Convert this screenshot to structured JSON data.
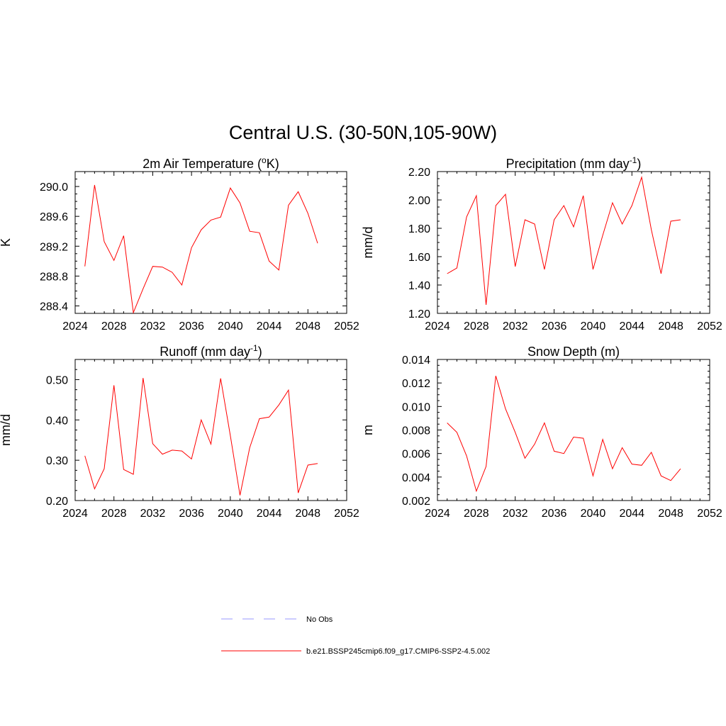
{
  "figure": {
    "title": "Central U.S. (30-50N,105-90W)"
  },
  "colors": {
    "model_line": "#ff0000",
    "obs_line": "#9999ff",
    "axis": "#000000"
  },
  "legend": {
    "items": [
      {
        "label": "No Obs",
        "style": "dashed",
        "color": "#9999ff"
      },
      {
        "label": "b.e21.BSSP245cmip6.f09_g17.CMIP6-SSP2-4.5.002",
        "style": "solid",
        "color": "#ff0000"
      }
    ]
  },
  "chart_data": [
    {
      "type": "line",
      "title": "2m Air Temperature (",
      "title_unit_sup": "o",
      "title_unit_after": "K)",
      "ylabel": "K",
      "xlim": [
        2024,
        2052
      ],
      "ylim": [
        288.3,
        290.2
      ],
      "xticks": [
        "2024",
        "2028",
        "2032",
        "2036",
        "2040",
        "2044",
        "2048",
        "2052"
      ],
      "yticks": [
        "288.4",
        "288.8",
        "289.2",
        "289.6",
        "290.0"
      ],
      "x": [
        2025,
        2026,
        2027,
        2028,
        2029,
        2030,
        2031,
        2032,
        2033,
        2034,
        2035,
        2036,
        2037,
        2038,
        2039,
        2040,
        2041,
        2042,
        2043,
        2044,
        2045,
        2046,
        2047,
        2048,
        2049
      ],
      "series": [
        {
          "values": [
            288.93,
            290.02,
            289.26,
            289.01,
            289.34,
            288.31,
            288.63,
            288.93,
            288.92,
            288.85,
            288.68,
            289.18,
            289.42,
            289.55,
            289.59,
            289.98,
            289.78,
            289.4,
            289.38,
            289.0,
            288.88,
            289.75,
            289.93,
            289.64,
            289.24
          ]
        }
      ]
    },
    {
      "type": "line",
      "title": "Precipitation (mm day",
      "title_unit_sup": "-1",
      "title_unit_after": ")",
      "ylabel": "mm/d",
      "xlim": [
        2024,
        2052
      ],
      "ylim": [
        1.2,
        2.2
      ],
      "xticks": [
        "2024",
        "2028",
        "2032",
        "2036",
        "2040",
        "2044",
        "2048",
        "2052"
      ],
      "yticks": [
        "1.20",
        "1.40",
        "1.60",
        "1.80",
        "2.00",
        "2.20"
      ],
      "x": [
        2025,
        2026,
        2027,
        2028,
        2029,
        2030,
        2031,
        2032,
        2033,
        2034,
        2035,
        2036,
        2037,
        2038,
        2039,
        2040,
        2041,
        2042,
        2043,
        2044,
        2045,
        2046,
        2047,
        2048,
        2049
      ],
      "series": [
        {
          "values": [
            1.48,
            1.52,
            1.88,
            2.03,
            1.26,
            1.96,
            2.04,
            1.53,
            1.86,
            1.83,
            1.51,
            1.86,
            1.96,
            1.81,
            2.03,
            1.51,
            1.75,
            1.98,
            1.83,
            1.96,
            2.16,
            1.79,
            1.48,
            1.85,
            1.86
          ]
        }
      ]
    },
    {
      "type": "line",
      "title": "Runoff (mm day",
      "title_unit_sup": "-1",
      "title_unit_after": ")",
      "ylabel": "mm/d",
      "xlim": [
        2024,
        2052
      ],
      "ylim": [
        0.2,
        0.55
      ],
      "xticks": [
        "2024",
        "2028",
        "2032",
        "2036",
        "2040",
        "2044",
        "2048",
        "2052"
      ],
      "yticks": [
        "0.20",
        "0.30",
        "0.40",
        "0.50"
      ],
      "x": [
        2025,
        2026,
        2027,
        2028,
        2029,
        2030,
        2031,
        2032,
        2033,
        2034,
        2035,
        2036,
        2037,
        2038,
        2039,
        2040,
        2041,
        2042,
        2043,
        2044,
        2045,
        2046,
        2047,
        2048,
        2049
      ],
      "series": [
        {
          "values": [
            0.311,
            0.229,
            0.279,
            0.486,
            0.277,
            0.265,
            0.504,
            0.341,
            0.315,
            0.325,
            0.323,
            0.303,
            0.4,
            0.34,
            0.503,
            0.361,
            0.213,
            0.331,
            0.403,
            0.407,
            0.437,
            0.474,
            0.219,
            0.288,
            0.292
          ]
        }
      ]
    },
    {
      "type": "line",
      "title": "Snow Depth (m)",
      "title_unit_sup": "",
      "title_unit_after": "",
      "ylabel": "m",
      "xlim": [
        2024,
        2052
      ],
      "ylim": [
        0.002,
        0.014
      ],
      "xticks": [
        "2024",
        "2028",
        "2032",
        "2036",
        "2040",
        "2044",
        "2048",
        "2052"
      ],
      "yticks": [
        "0.002",
        "0.004",
        "0.006",
        "0.008",
        "0.010",
        "0.012",
        "0.014"
      ],
      "x": [
        2025,
        2026,
        2027,
        2028,
        2029,
        2030,
        2031,
        2032,
        2033,
        2034,
        2035,
        2036,
        2037,
        2038,
        2039,
        2040,
        2041,
        2042,
        2043,
        2044,
        2045,
        2046,
        2047,
        2048,
        2049
      ],
      "series": [
        {
          "values": [
            0.0086,
            0.0078,
            0.0058,
            0.0028,
            0.0049,
            0.0126,
            0.0098,
            0.0078,
            0.0056,
            0.0068,
            0.0086,
            0.0062,
            0.006,
            0.0074,
            0.0073,
            0.0041,
            0.0072,
            0.0047,
            0.0065,
            0.0051,
            0.005,
            0.0061,
            0.0041,
            0.0037,
            0.0047
          ]
        }
      ]
    }
  ]
}
